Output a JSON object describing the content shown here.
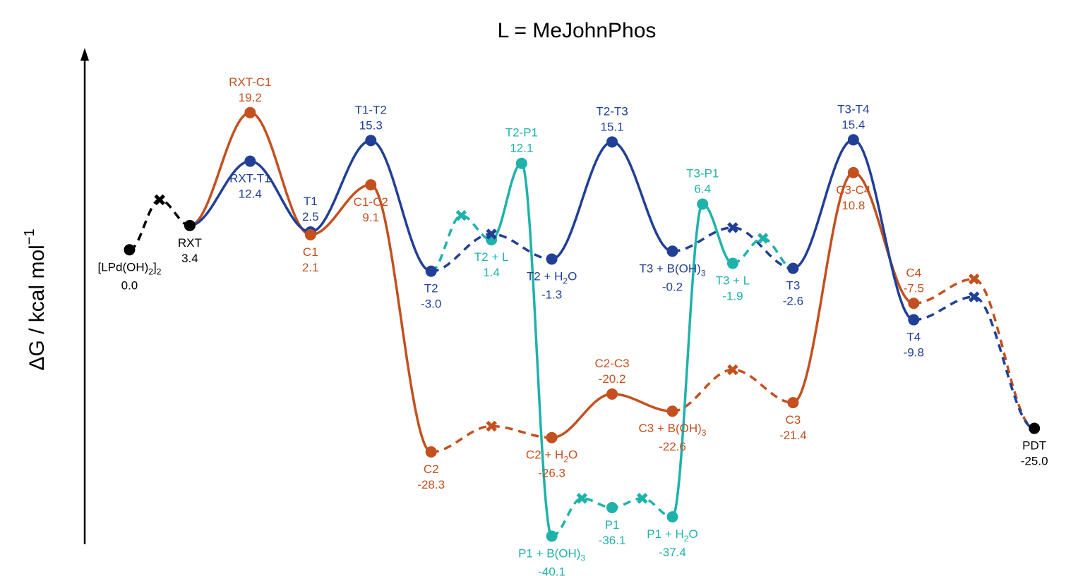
{
  "chart_data": {
    "type": "line",
    "title": "L = MeJohnPhos",
    "ylabel": "ΔG / kcal mol",
    "ylabel_superscript": "−1",
    "ylim": [
      -44,
      33
    ],
    "xlim": [
      -1,
      15.7
    ],
    "grid": false,
    "colors": {
      "black": "#000000",
      "orange": "#c4501f",
      "blue": "#213f96",
      "teal": "#1fb2aa"
    },
    "points": {
      "start": {
        "x": 0.0,
        "y": 0.0
      },
      "RXT": {
        "x": 1.0,
        "y": 3.4
      },
      "RXTC1": {
        "x": 2.0,
        "y": 19.2
      },
      "RXTT1": {
        "x": 2.0,
        "y": 12.4
      },
      "T1": {
        "x": 3.0,
        "y": 2.5
      },
      "C1": {
        "x": 3.0,
        "y": 2.1
      },
      "T1T2": {
        "x": 4.0,
        "y": 15.3
      },
      "C1C2": {
        "x": 4.0,
        "y": 9.1
      },
      "T2": {
        "x": 5.0,
        "y": -3.0
      },
      "C2": {
        "x": 5.0,
        "y": -28.3
      },
      "T2L": {
        "x": 6.0,
        "y": 1.4
      },
      "T2P1": {
        "x": 6.5,
        "y": 12.1
      },
      "T2H2O": {
        "x": 7.0,
        "y": -1.3
      },
      "C2H2O": {
        "x": 7.0,
        "y": -26.3
      },
      "P1BOH3": {
        "x": 7.0,
        "y": -40.1
      },
      "T2T3": {
        "x": 8.0,
        "y": 15.1
      },
      "C2C3": {
        "x": 8.0,
        "y": -20.2
      },
      "P1": {
        "x": 8.0,
        "y": -36.1
      },
      "T3BOH3": {
        "x": 9.0,
        "y": -0.2
      },
      "C3BOH3": {
        "x": 9.0,
        "y": -22.6
      },
      "P1H2O": {
        "x": 9.0,
        "y": -37.4
      },
      "T3P1": {
        "x": 9.5,
        "y": 6.4
      },
      "T3L": {
        "x": 10.0,
        "y": -1.9
      },
      "T3": {
        "x": 11.0,
        "y": -2.6
      },
      "C3": {
        "x": 11.0,
        "y": -21.4
      },
      "T3T4": {
        "x": 12.0,
        "y": 15.4
      },
      "C3C4": {
        "x": 12.0,
        "y": 10.8
      },
      "C4": {
        "x": 13.0,
        "y": -7.5
      },
      "T4": {
        "x": 13.0,
        "y": -9.8
      },
      "PDT": {
        "x": 15.0,
        "y": -25.0
      }
    },
    "xmarks": [
      {
        "x": 0.5,
        "y": 7.0,
        "color": "black"
      },
      {
        "x": 5.5,
        "y": 4.8,
        "color": "teal"
      },
      {
        "x": 6.0,
        "y": 2.2,
        "color": "blue"
      },
      {
        "x": 6.0,
        "y": -24.7,
        "color": "orange"
      },
      {
        "x": 7.5,
        "y": -34.8,
        "color": "teal"
      },
      {
        "x": 8.5,
        "y": -34.8,
        "color": "teal"
      },
      {
        "x": 10.0,
        "y": 3.1,
        "color": "blue"
      },
      {
        "x": 10.0,
        "y": -16.8,
        "color": "orange"
      },
      {
        "x": 10.5,
        "y": 1.6,
        "color": "teal"
      },
      {
        "x": 14.0,
        "y": -4.1,
        "color": "orange"
      },
      {
        "x": 14.0,
        "y": -6.6,
        "color": "blue"
      }
    ],
    "segments": [
      {
        "color": "black",
        "dash": true,
        "path": [
          "start",
          "X0",
          "RXT"
        ]
      },
      {
        "color": "orange",
        "dash": false,
        "path": [
          "RXT",
          "RXTC1",
          "C1",
          "C1C2",
          "C2"
        ]
      },
      {
        "color": "blue",
        "dash": false,
        "path": [
          "RXT",
          "RXTT1",
          "T1",
          "T1T2",
          "T2"
        ]
      },
      {
        "color": "orange",
        "dash": true,
        "path": [
          "C2",
          "X3",
          "C2H2O"
        ]
      },
      {
        "color": "orange",
        "dash": false,
        "path": [
          "C2H2O",
          "C2C3",
          "C3BOH3"
        ]
      },
      {
        "color": "orange",
        "dash": true,
        "path": [
          "C3BOH3",
          "X7",
          "C3"
        ]
      },
      {
        "color": "orange",
        "dash": false,
        "path": [
          "C3",
          "C3C4",
          "C4"
        ]
      },
      {
        "color": "orange",
        "dash": true,
        "path": [
          "C4",
          "X9",
          "PDT"
        ]
      },
      {
        "color": "blue",
        "dash": true,
        "path": [
          "T2",
          "X2",
          "T2H2O"
        ]
      },
      {
        "color": "blue",
        "dash": false,
        "path": [
          "T2H2O",
          "T2T3",
          "T3BOH3"
        ]
      },
      {
        "color": "blue",
        "dash": true,
        "path": [
          "T3BOH3",
          "X6",
          "T3"
        ]
      },
      {
        "color": "blue",
        "dash": false,
        "path": [
          "T3",
          "T3T4",
          "T4"
        ]
      },
      {
        "color": "blue",
        "dash": true,
        "path": [
          "T4",
          "X10",
          "PDT"
        ]
      },
      {
        "color": "teal",
        "dash": true,
        "path": [
          "T2",
          "X1",
          "T2L"
        ]
      },
      {
        "color": "teal",
        "dash": false,
        "path": [
          "T2L",
          "T2P1",
          "P1BOH3"
        ]
      },
      {
        "color": "teal",
        "dash": true,
        "path": [
          "P1BOH3",
          "X4",
          "P1",
          "X5",
          "P1H2O"
        ]
      },
      {
        "color": "teal",
        "dash": false,
        "path": [
          "P1H2O",
          "T3P1",
          "T3L"
        ]
      },
      {
        "color": "teal",
        "dash": true,
        "path": [
          "T3L",
          "X8",
          "T3"
        ]
      }
    ],
    "labels": [
      {
        "id": "start",
        "name": "[LPd(OH)",
        "sub": "2",
        "tail": "]",
        "sub2": "2",
        "value": "0.0",
        "color": "black",
        "pos": "below"
      },
      {
        "id": "RXT",
        "name": "RXT",
        "value": "3.4",
        "color": "black",
        "pos": "below"
      },
      {
        "id": "RXTC1",
        "name": "RXT-C1",
        "value": "19.2",
        "color": "orange",
        "pos": "above"
      },
      {
        "id": "RXTT1",
        "name": "RXT-T1",
        "value": "12.4",
        "color": "blue",
        "pos": "below"
      },
      {
        "id": "T1",
        "name": "T1",
        "value": "2.5",
        "color": "blue",
        "pos": "above"
      },
      {
        "id": "C1",
        "name": "C1",
        "value": "2.1",
        "color": "orange",
        "pos": "below"
      },
      {
        "id": "T1T2",
        "name": "T1-T2",
        "value": "15.3",
        "color": "blue",
        "pos": "above"
      },
      {
        "id": "C1C2",
        "name": "C1-C2",
        "value": "9.1",
        "color": "orange",
        "pos": "below"
      },
      {
        "id": "T2",
        "name": "T2",
        "value": "-3.0",
        "color": "blue",
        "pos": "below"
      },
      {
        "id": "C2",
        "name": "C2",
        "value": "-28.3",
        "color": "orange",
        "pos": "below"
      },
      {
        "id": "T2L",
        "name": "T2 + L",
        "value": "1.4",
        "color": "teal",
        "pos": "below"
      },
      {
        "id": "T2P1",
        "name": "T2-P1",
        "value": "12.1",
        "color": "teal",
        "pos": "above"
      },
      {
        "id": "T2H2O",
        "name": "T2 + H",
        "sub": "2",
        "tail": "O",
        "value": "-1.3",
        "color": "blue",
        "pos": "below"
      },
      {
        "id": "C2H2O",
        "name": "C2 + H",
        "sub": "2",
        "tail": "O",
        "value": "-26.3",
        "color": "orange",
        "pos": "below"
      },
      {
        "id": "P1BOH3",
        "name": "P1 + B(OH)",
        "sub": "3",
        "value": "-40.1",
        "color": "teal",
        "pos": "below"
      },
      {
        "id": "T2T3",
        "name": "T2-T3",
        "value": "15.1",
        "color": "blue",
        "pos": "above"
      },
      {
        "id": "C2C3",
        "name": "C2-C3",
        "value": "-20.2",
        "color": "orange",
        "pos": "above"
      },
      {
        "id": "P1",
        "name": "P1",
        "value": "-36.1",
        "color": "teal",
        "pos": "below"
      },
      {
        "id": "T3BOH3",
        "name": "T3 + B(OH)",
        "sub": "3",
        "value": "-0.2",
        "color": "blue",
        "pos": "below"
      },
      {
        "id": "C3BOH3",
        "name": "C3 + B(OH)",
        "sub": "3",
        "value": "-22.6",
        "color": "orange",
        "pos": "below"
      },
      {
        "id": "P1H2O",
        "name": "P1 + H",
        "sub": "2",
        "tail": "O",
        "value": "-37.4",
        "color": "teal",
        "pos": "below"
      },
      {
        "id": "T3P1",
        "name": "T3-P1",
        "value": "6.4",
        "color": "teal",
        "pos": "above"
      },
      {
        "id": "T3L",
        "name": "T3 + L",
        "value": "-1.9",
        "color": "teal",
        "pos": "below"
      },
      {
        "id": "T3",
        "name": "T3",
        "value": "-2.6",
        "color": "blue",
        "pos": "below"
      },
      {
        "id": "C3",
        "name": "C3",
        "value": "-21.4",
        "color": "orange",
        "pos": "below"
      },
      {
        "id": "T3T4",
        "name": "T3-T4",
        "value": "15.4",
        "color": "blue",
        "pos": "above"
      },
      {
        "id": "C3C4",
        "name": "C3-C4",
        "value": "10.8",
        "color": "orange",
        "pos": "below"
      },
      {
        "id": "C4",
        "name": "C4",
        "value": "-7.5",
        "color": "orange",
        "pos": "above"
      },
      {
        "id": "T4",
        "name": "T4",
        "value": "-9.8",
        "color": "blue",
        "pos": "below"
      },
      {
        "id": "PDT",
        "name": "PDT",
        "value": "-25.0",
        "color": "black",
        "pos": "below"
      }
    ]
  }
}
